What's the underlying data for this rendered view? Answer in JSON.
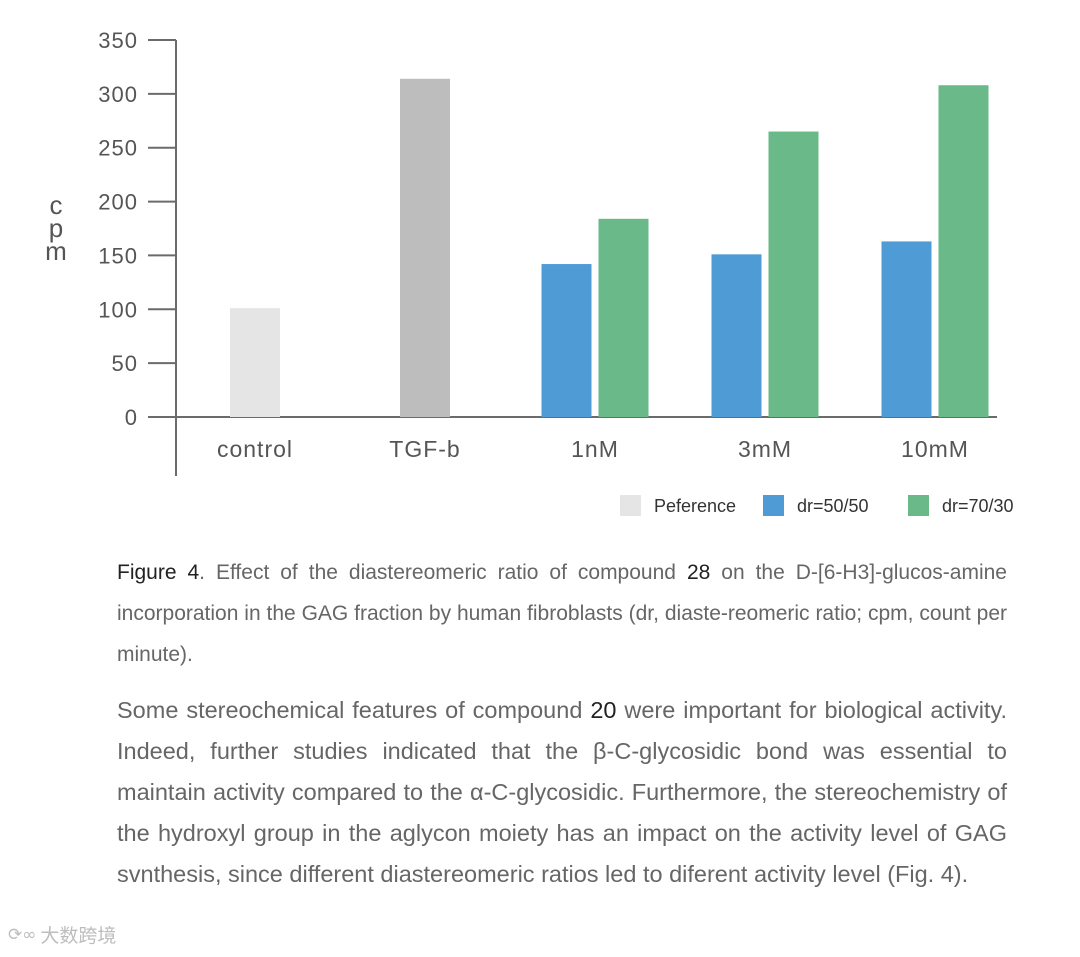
{
  "chart_data": {
    "type": "bar",
    "title": "",
    "xlabel": "",
    "ylabel": "cpm",
    "ylim": [
      0,
      350
    ],
    "yticks": [
      0,
      50,
      100,
      150,
      200,
      250,
      300,
      350
    ],
    "categories": [
      "control",
      "TGF-b",
      "1nM",
      "3mM",
      "10mM"
    ],
    "series": [
      {
        "name": "Peference",
        "color": "#e5e5e5",
        "values": [
          101,
          null,
          null,
          null,
          null
        ]
      },
      {
        "name": "Peference",
        "color": "#bdbdbd",
        "values": [
          null,
          314,
          null,
          null,
          null
        ]
      },
      {
        "name": "dr=50/50",
        "color": "#4e9bd6",
        "values": [
          null,
          null,
          142,
          151,
          163
        ]
      },
      {
        "name": "dr=70/30",
        "color": "#69ba88",
        "values": [
          null,
          null,
          184,
          265,
          308
        ]
      }
    ],
    "legend": [
      {
        "label": "Peference",
        "color": "#e5e5e5"
      },
      {
        "label": "dr=50/50",
        "color": "#4e9bd6"
      },
      {
        "label": "dr=70/30",
        "color": "#69ba88"
      }
    ],
    "legend_position": "bottom-right"
  },
  "caption": {
    "figure_label": "Figure 4",
    "part1": ". Effect of the diastereomeric ratio of compound ",
    "compound": "28",
    "part2": " on the D-[6-H3]-glucos-amine incorporation in the GAG fraction by human fibroblasts (dr, diaste-reomeric ratio; cpm, count per minute)."
  },
  "paragraph": {
    "part1": "Some stereochemical features of compound ",
    "compound": "20",
    "part2": " were important for biological activity. Indeed, further studies indicated that the β-C-glycosidic bond was essential to maintain activity compared to the α-C-glycosidic. Furthermore, the stereochemistry of the hydroxyl group in the aglycon moiety has an impact on the activity level of GAG svnthesis, since different diastereomeric ratios led to diferent activity level (Fig. 4)."
  },
  "watermark": {
    "text": "大数跨境"
  }
}
